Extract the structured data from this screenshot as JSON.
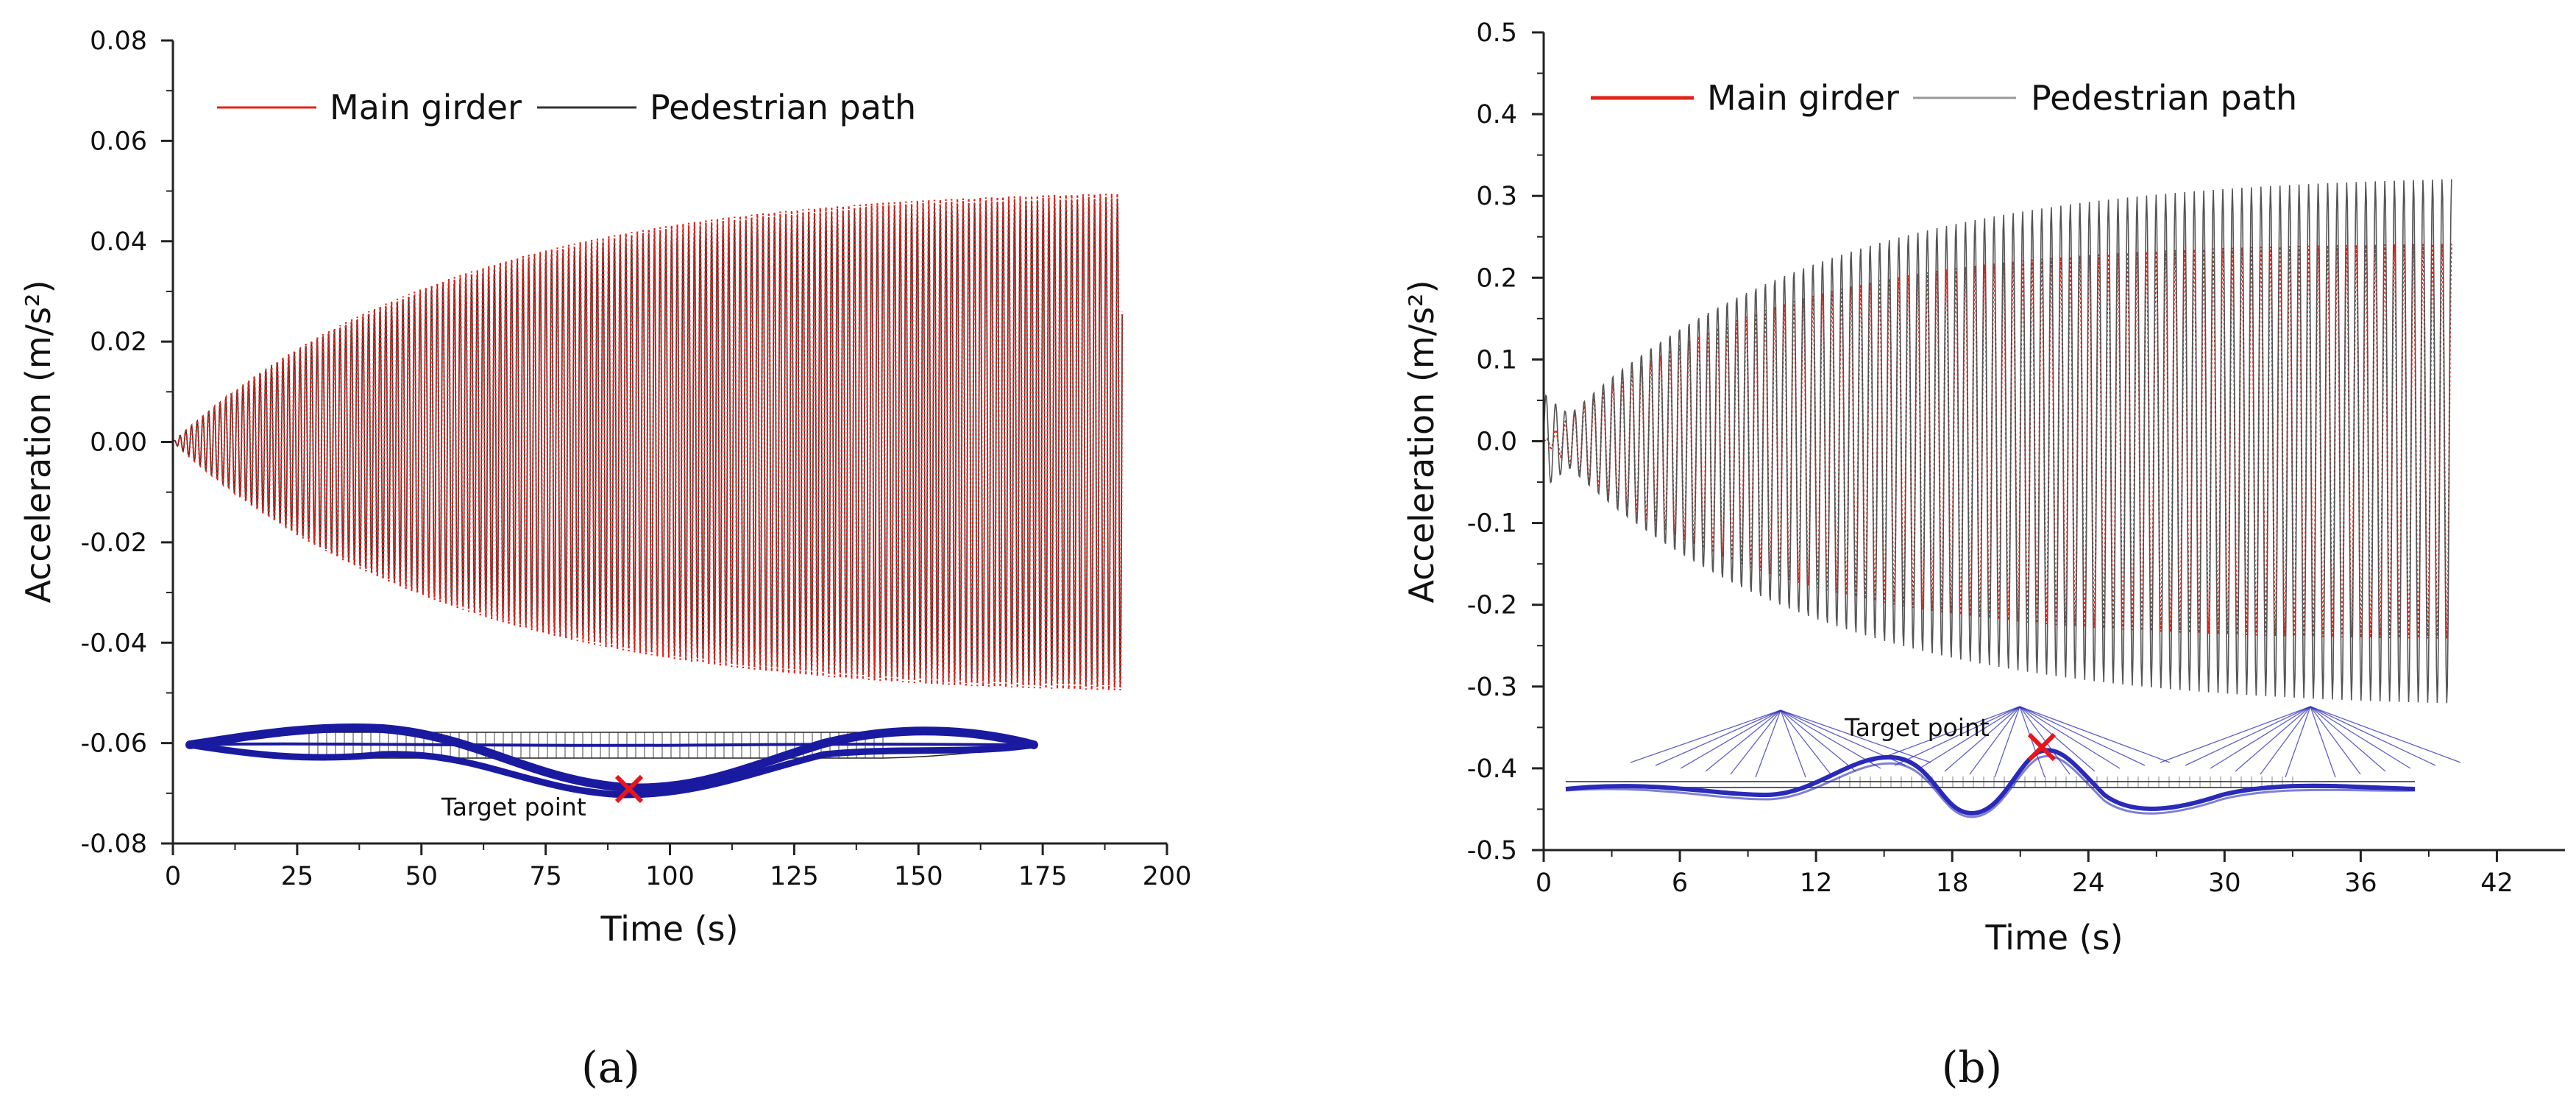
{
  "chart_data": [
    {
      "type": "line",
      "panel_label": "(a)",
      "xlabel": "Time (s)",
      "ylabel": "Acceleration (m/s²)",
      "xlim": [
        0,
        200
      ],
      "ylim": [
        -0.08,
        0.08
      ],
      "xticks": [
        0,
        25,
        50,
        75,
        100,
        125,
        150,
        175,
        200
      ],
      "xtick_labels": [
        "0",
        "25",
        "50",
        "75",
        "100",
        "125",
        "150",
        "175",
        "200"
      ],
      "yticks": [
        -0.08,
        -0.06,
        -0.04,
        -0.02,
        0.0,
        0.02,
        0.04,
        0.06,
        0.08
      ],
      "ytick_labels": [
        "-0.08",
        "-0.06",
        "-0.04",
        "-0.02",
        "0.00",
        "0.02",
        "0.04",
        "0.06",
        "0.08"
      ],
      "legend_position": "top-left",
      "series": [
        {
          "name": "Main girder",
          "color": "#e0241b",
          "style": "dotted",
          "t_end": 191,
          "amplitude_max": 0.0515,
          "amplitude_tau": 55,
          "period": 1.15
        },
        {
          "name": "Pedestrian path",
          "color": "#333333",
          "style": "solid",
          "t_end": 191,
          "amplitude_max": 0.0505,
          "amplitude_tau": 55,
          "period": 1.15
        }
      ],
      "inset": {
        "label": "Target point",
        "target_color": "#e8151b",
        "bridge_color": "#1a1aa0"
      }
    },
    {
      "type": "line",
      "panel_label": "(b)",
      "xlabel": "Time (s)",
      "ylabel": "Acceleration (m/s²)",
      "xlim": [
        0,
        45
      ],
      "ylim": [
        -0.5,
        0.5
      ],
      "xticks": [
        0,
        6,
        12,
        18,
        24,
        30,
        36,
        42
      ],
      "xtick_labels": [
        "0",
        "6",
        "12",
        "18",
        "24",
        "30",
        "36",
        "42"
      ],
      "yticks": [
        -0.5,
        -0.4,
        -0.3,
        -0.2,
        -0.1,
        0.0,
        0.1,
        0.2,
        0.3,
        0.4,
        0.5
      ],
      "ytick_labels": [
        "-0.5",
        "-0.4",
        "-0.3",
        "-0.2",
        "-0.1",
        "0.0",
        "0.1",
        "0.2",
        "0.3",
        "0.4",
        "0.5"
      ],
      "legend_position": "top-left",
      "series": [
        {
          "name": "Main girder",
          "color": "#e0241b",
          "style": "dotted",
          "t_end": 40,
          "amplitude_max": 0.245,
          "amplitude_tau": 9,
          "period": 0.42
        },
        {
          "name": "Pedestrian path",
          "color": "#555555",
          "style": "solid",
          "t_end": 40,
          "amplitude_max": 0.33,
          "amplitude_tau": 11,
          "period": 0.42
        }
      ],
      "inset": {
        "label": "Target point",
        "target_color": "#e8151b",
        "bridge_color": "#2a2ab8"
      }
    }
  ]
}
